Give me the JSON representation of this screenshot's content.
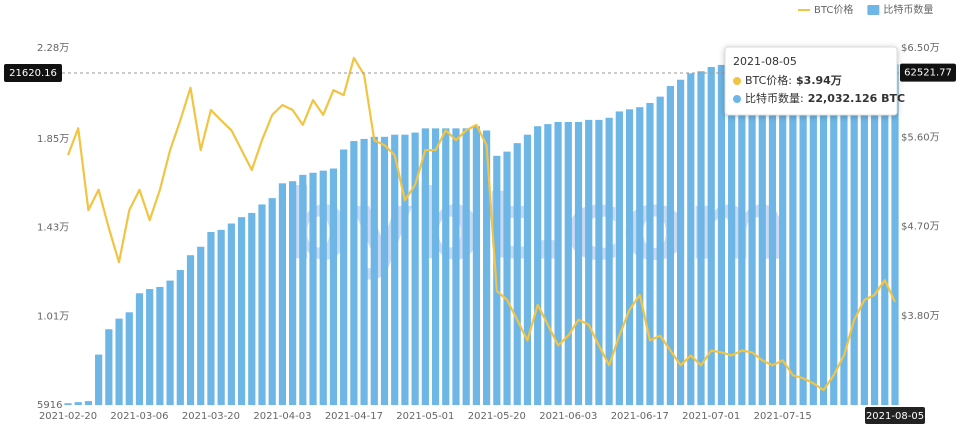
{
  "chart_data": {
    "type": "combo",
    "legend": "top-right",
    "watermark": "bybt.com",
    "x": [
      "2021-02-20",
      "2021-02-22",
      "2021-02-24",
      "2021-02-26",
      "2021-02-28",
      "2021-03-02",
      "2021-03-04",
      "2021-03-06",
      "2021-03-08",
      "2021-03-10",
      "2021-03-12",
      "2021-03-14",
      "2021-03-16",
      "2021-03-18",
      "2021-03-20",
      "2021-03-22",
      "2021-03-24",
      "2021-03-26",
      "2021-03-28",
      "2021-03-30",
      "2021-04-01",
      "2021-04-03",
      "2021-04-05",
      "2021-04-07",
      "2021-04-09",
      "2021-04-11",
      "2021-04-13",
      "2021-04-15",
      "2021-04-17",
      "2021-04-19",
      "2021-04-21",
      "2021-04-23",
      "2021-04-25",
      "2021-04-27",
      "2021-04-29",
      "2021-05-01",
      "2021-05-03",
      "2021-05-05",
      "2021-05-07",
      "2021-05-09",
      "2021-05-11",
      "2021-05-13",
      "2021-05-20",
      "2021-05-22",
      "2021-05-24",
      "2021-05-26",
      "2021-05-28",
      "2021-05-30",
      "2021-06-01",
      "2021-06-03",
      "2021-06-05",
      "2021-06-07",
      "2021-06-09",
      "2021-06-11",
      "2021-06-13",
      "2021-06-15",
      "2021-06-17",
      "2021-06-19",
      "2021-06-21",
      "2021-06-23",
      "2021-06-25",
      "2021-06-27",
      "2021-06-29",
      "2021-07-01",
      "2021-07-03",
      "2021-07-05",
      "2021-07-07",
      "2021-07-09",
      "2021-07-11",
      "2021-07-13",
      "2021-07-15",
      "2021-07-17",
      "2021-07-19",
      "2021-07-21",
      "2021-07-23",
      "2021-07-25",
      "2021-07-27",
      "2021-07-29",
      "2021-07-31",
      "2021-08-02",
      "2021-08-04",
      "2021-08-05"
    ],
    "xticks": [
      "2021-02-20",
      "2021-03-06",
      "2021-03-20",
      "2021-04-03",
      "2021-04-17",
      "2021-05-01",
      "2021-05-20",
      "2021-06-03",
      "2021-06-17",
      "2021-07-01",
      "2021-07-15",
      "2021-08-05"
    ],
    "highlight_x": "2021-08-05",
    "series": [
      {
        "name": "BTC价格",
        "type": "line",
        "axis": "y2",
        "color": "#f2c443",
        "values": [
          54200,
          56900,
          48650,
          50700,
          46850,
          43400,
          48650,
          50700,
          47650,
          50700,
          54700,
          57700,
          61000,
          54700,
          58750,
          57700,
          56700,
          54700,
          52700,
          55700,
          58250,
          59250,
          58750,
          57250,
          59750,
          58250,
          60750,
          60250,
          64000,
          62300,
          55700,
          55200,
          54200,
          49650,
          51200,
          54700,
          54700,
          56700,
          55700,
          56700,
          57250,
          55200,
          40500,
          39600,
          37600,
          35500,
          39100,
          37100,
          35000,
          36000,
          37600,
          37100,
          35000,
          33000,
          36000,
          38600,
          40100,
          35500,
          36000,
          34500,
          33000,
          34000,
          33000,
          34500,
          34300,
          34000,
          34500,
          34300,
          33500,
          33000,
          33500,
          32000,
          31700,
          31200,
          30500,
          32000,
          34000,
          37600,
          39600,
          40100,
          41600,
          39400
        ]
      },
      {
        "name": "比特币数量",
        "type": "bar",
        "color": "#6db6e6",
        "values": [
          6000,
          6050,
          6100,
          8300,
          9500,
          10000,
          10300,
          11200,
          11400,
          11500,
          11800,
          12300,
          13000,
          13400,
          14100,
          14200,
          14500,
          14800,
          15000,
          15400,
          15700,
          16400,
          16500,
          16800,
          16900,
          17000,
          17100,
          18000,
          18400,
          18500,
          18600,
          18600,
          18700,
          18700,
          18800,
          19000,
          19000,
          19000,
          19000,
          19000,
          19100,
          18900,
          17700,
          17900,
          18300,
          18700,
          19100,
          19200,
          19300,
          19300,
          19300,
          19400,
          19400,
          19500,
          19800,
          19900,
          20000,
          20200,
          20500,
          21000,
          21300,
          21600,
          21700,
          21900,
          22000,
          22000,
          22000,
          22100,
          22100,
          22100,
          22200,
          22200,
          22200,
          22200,
          22200,
          22200,
          22100,
          22100,
          22100,
          22100,
          22050,
          22032.126
        ]
      }
    ],
    "ylim": [
      5916,
      22800
    ],
    "yticks": [
      5916,
      {
        "value": 10100,
        "label": "1.01万"
      },
      {
        "value": 14300,
        "label": "1.43万"
      },
      {
        "value": 18500,
        "label": "1.85万"
      },
      {
        "value": 22800,
        "label": "2.28万"
      }
    ],
    "y2lim": [
      29000,
      65000
    ],
    "y2ticks": [
      {
        "value": 38000,
        "label": "$3.80万"
      },
      {
        "value": 47000,
        "label": "$4.70万"
      },
      {
        "value": 56000,
        "label": "$5.60万"
      },
      {
        "value": 65000,
        "label": "$6.50万"
      }
    ],
    "crosshair": {
      "y": 21620.16,
      "y2": 62521.77
    },
    "tooltip": {
      "date": "2021-08-05",
      "items": [
        {
          "label": "BTC价格:",
          "value": "$3.94万"
        },
        {
          "label": "比特币数量:",
          "value": "22,032.126 BTC"
        }
      ]
    }
  }
}
